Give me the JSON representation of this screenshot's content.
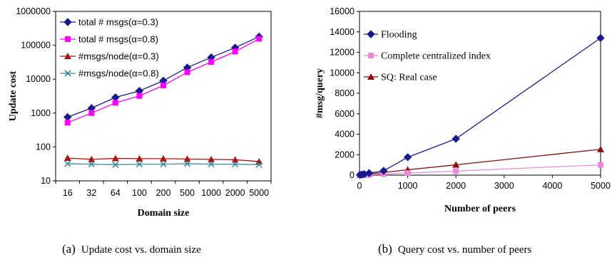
{
  "chart_data": [
    {
      "type": "line",
      "caption_label": "(a)",
      "caption_text": "Update cost vs. domain size",
      "xlabel": "Domain size",
      "ylabel": "Update cost",
      "yscale": "log",
      "ylim": [
        10,
        1000000
      ],
      "y_ticks": [
        "10",
        "100",
        "1000",
        "10000",
        "100000",
        "1000000"
      ],
      "categories": [
        "16",
        "32",
        "64",
        "100",
        "200",
        "500",
        "1000",
        "2000",
        "5000"
      ],
      "grid": false,
      "legend_position": "top-left",
      "series": [
        {
          "name": "total # msgs(α=0.3)",
          "color": "#1a1a8c",
          "marker": "diamond",
          "values": [
            760,
            1400,
            2900,
            4500,
            9000,
            22000,
            44000,
            85000,
            180000
          ]
        },
        {
          "name": "total # msgs(α=0.8)",
          "color": "#ff00ff",
          "marker": "square",
          "values": [
            520,
            1000,
            2000,
            3200,
            6500,
            16000,
            32000,
            65000,
            155000
          ]
        },
        {
          "name": "#msgs/node(α=0.3)",
          "color": "#b01010",
          "marker": "triangle",
          "values": [
            47,
            43,
            46,
            45,
            45,
            44,
            43,
            42,
            37
          ]
        },
        {
          "name": "#msgs/node(α=0.8)",
          "color": "#3a8aa0",
          "marker": "x",
          "values": [
            32,
            31,
            30,
            31,
            31,
            32,
            31,
            31,
            30
          ]
        }
      ]
    },
    {
      "type": "line",
      "caption_label": "(b)",
      "caption_text": "Query cost vs. number of peers",
      "xlabel": "Number of peers",
      "ylabel": "#msg/query",
      "xlim": [
        0,
        5000
      ],
      "ylim": [
        0,
        16000
      ],
      "x_ticks": [
        0,
        1000,
        2000,
        3000,
        4000,
        5000
      ],
      "y_ticks": [
        0,
        2000,
        4000,
        6000,
        8000,
        10000,
        12000,
        14000,
        16000
      ],
      "grid": false,
      "legend_position": "top-left",
      "series": [
        {
          "name": "Flooding",
          "color": "#1a1a8c",
          "marker": "diamond",
          "x": [
            10,
            50,
            100,
            200,
            500,
            1000,
            2000,
            5000
          ],
          "y": [
            20,
            60,
            100,
            200,
            420,
            1750,
            3550,
            13400
          ]
        },
        {
          "name": "Complete centralized index",
          "color": "#ee88dd",
          "marker": "square",
          "x": [
            10,
            50,
            100,
            200,
            500,
            1000,
            2000,
            5000
          ],
          "y": [
            2,
            10,
            20,
            40,
            100,
            200,
            400,
            1000
          ]
        },
        {
          "name": "SQ: Real case",
          "color": "#8b0a0a",
          "marker": "triangle",
          "x": [
            10,
            50,
            100,
            200,
            500,
            1000,
            2000,
            5000
          ],
          "y": [
            10,
            30,
            60,
            110,
            260,
            520,
            1010,
            2520
          ]
        }
      ]
    }
  ]
}
